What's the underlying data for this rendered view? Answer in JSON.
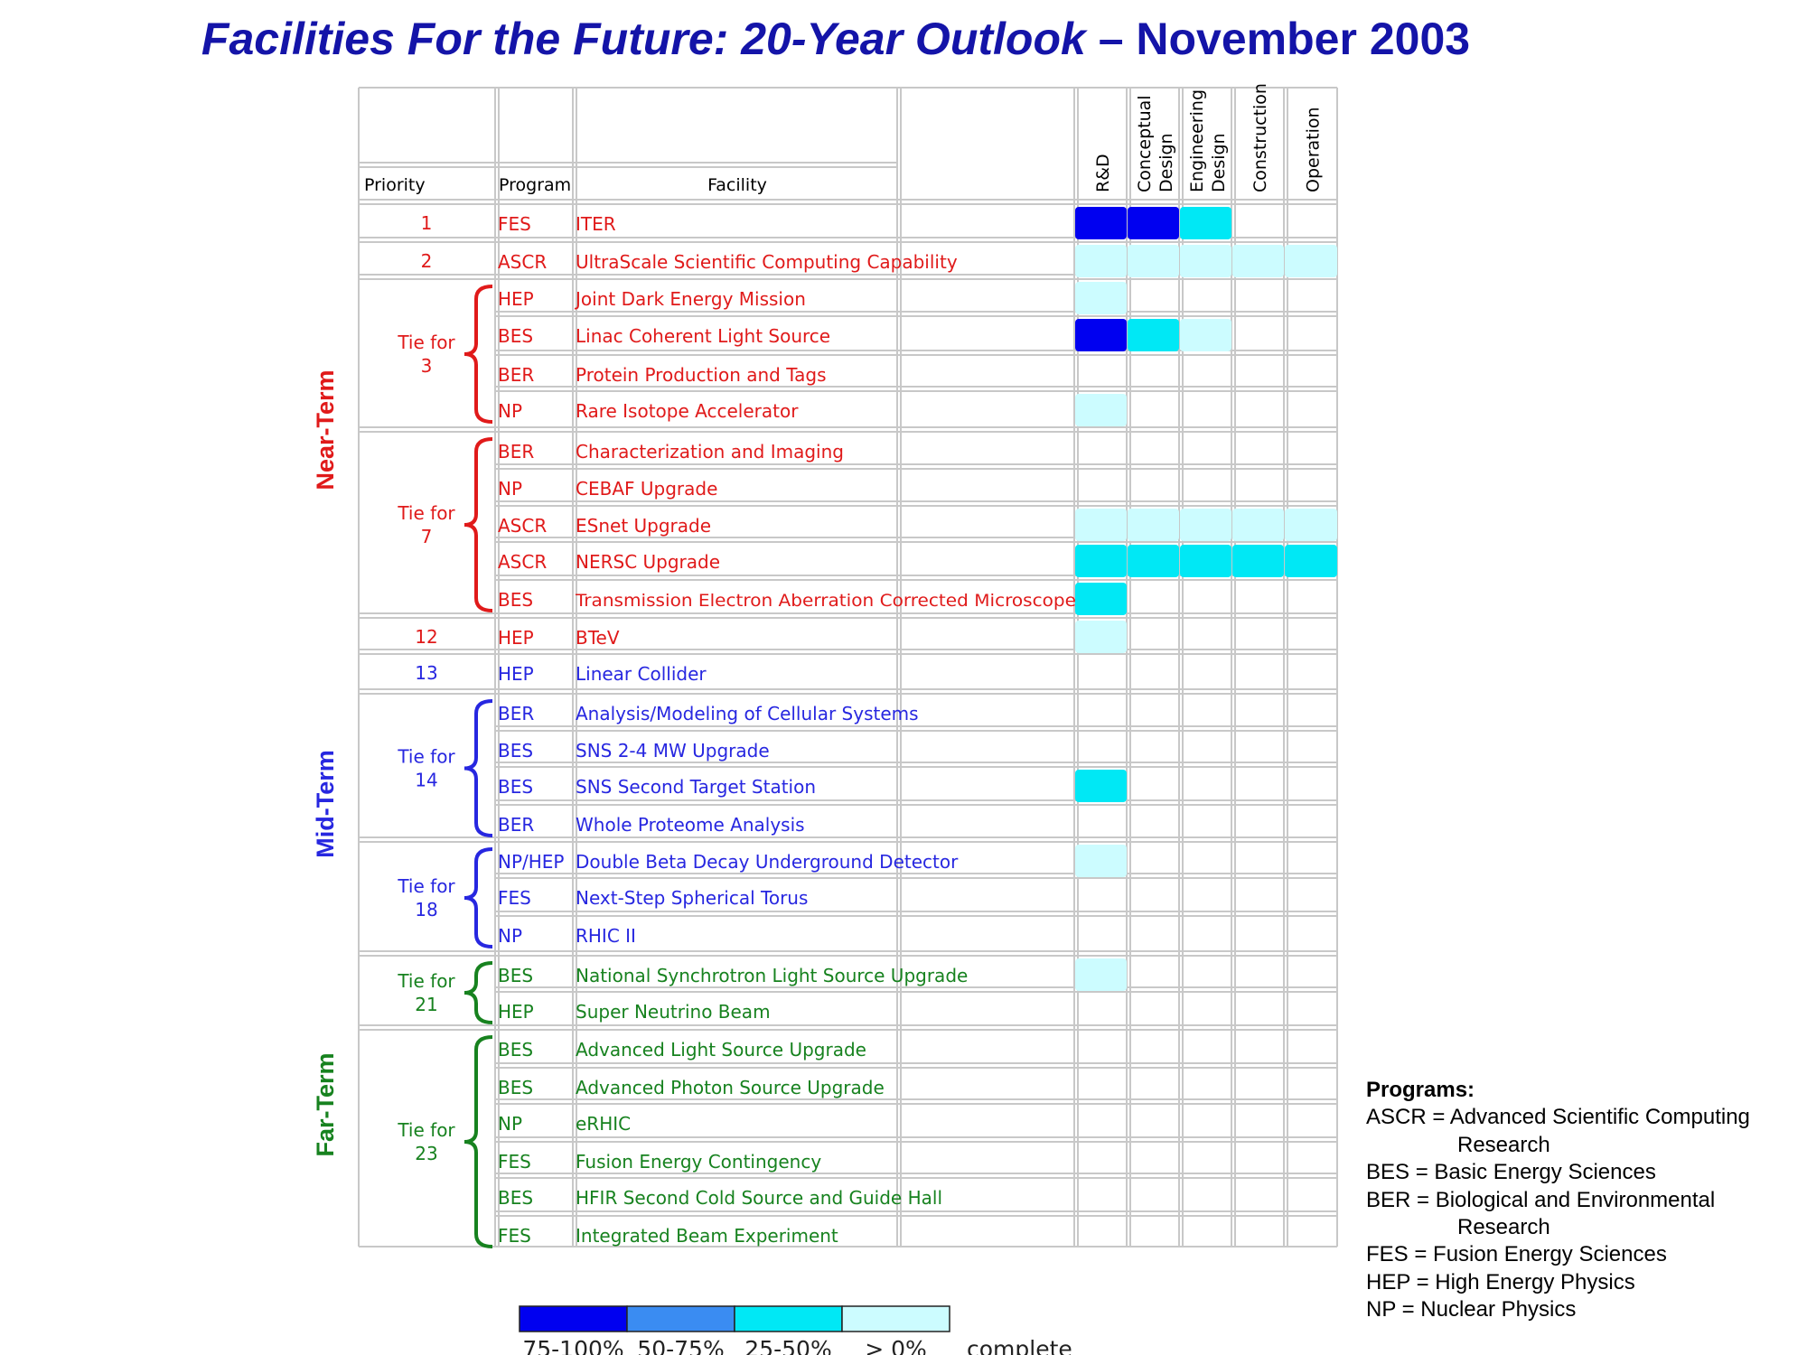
{
  "title": {
    "italic_part": "Facilities For the Future: 20-Year Outlook",
    "normal_part": " – November 2003"
  },
  "headers": {
    "priority": "Priority",
    "program": "Program",
    "facility": "Facility"
  },
  "stage_headers": [
    {
      "lines": [
        "R&D"
      ]
    },
    {
      "lines": [
        "Conceptual",
        "Design"
      ]
    },
    {
      "lines": [
        "Engineering",
        "Design"
      ]
    },
    {
      "lines": [
        "Construction"
      ]
    },
    {
      "lines": [
        "Operation"
      ]
    }
  ],
  "terms": [
    {
      "label": "Near-Term",
      "color": "#e01a1a"
    },
    {
      "label": "Mid-Term",
      "color": "#2727e0"
    },
    {
      "label": "Far-Term",
      "color": "#17821f"
    }
  ],
  "colors": {
    "red": "#e01a1a",
    "blue": "#2727e0",
    "green": "#17821f",
    "grid": "#c8c8c8"
  },
  "priority_groups": [
    {
      "lines": [
        "1"
      ],
      "color": "red",
      "brace": false
    },
    {
      "lines": [
        "2"
      ],
      "color": "red",
      "brace": false
    },
    {
      "lines": [
        "Tie for",
        "3"
      ],
      "color": "red",
      "brace": true
    },
    {
      "lines": [
        "Tie for",
        "7"
      ],
      "color": "red",
      "brace": true
    },
    {
      "lines": [
        "12"
      ],
      "color": "red",
      "brace": false
    },
    {
      "lines": [
        "13"
      ],
      "color": "blue",
      "brace": false
    },
    {
      "lines": [
        "Tie for",
        "14"
      ],
      "color": "blue",
      "brace": true
    },
    {
      "lines": [
        "Tie for",
        "18"
      ],
      "color": "blue",
      "brace": true
    },
    {
      "lines": [
        "Tie for",
        "21"
      ],
      "color": "green",
      "brace": true
    },
    {
      "lines": [
        "Tie for",
        "23"
      ],
      "color": "green",
      "brace": true
    }
  ],
  "chart_data": {
    "type": "table",
    "title": "Facilities For the Future: 20-Year Outlook – November 2003",
    "columns": [
      "Priority",
      "Program",
      "Facility",
      "R&D",
      "Conceptual Design",
      "Engineering Design",
      "Construction",
      "Operation"
    ],
    "completion_levels": [
      {
        "label": "75-100%",
        "color": "#0000f0"
      },
      {
        "label": "50-75%",
        "color": "#3a8cf2"
      },
      {
        "label": "25-50%",
        "color": "#00e8f5"
      },
      {
        "label": "> 0%",
        "color": "#ccfcff"
      }
    ],
    "legend_suffix": "complete",
    "rows": [
      {
        "program": "FES",
        "facility": "ITER",
        "stages": [
          "75-100%",
          "75-100%",
          "25-50%",
          "",
          ""
        ]
      },
      {
        "program": "ASCR",
        "facility": "UltraScale Scientific Computing Capability",
        "stages": [
          "> 0%",
          "> 0%",
          "> 0%",
          "> 0%",
          "> 0%"
        ]
      },
      {
        "program": "HEP",
        "facility": "Joint Dark Energy Mission",
        "stages": [
          "> 0%",
          "",
          "",
          "",
          ""
        ]
      },
      {
        "program": "BES",
        "facility": "Linac Coherent Light Source",
        "stages": [
          "75-100%",
          "25-50%",
          "> 0%",
          "",
          ""
        ]
      },
      {
        "program": "BER",
        "facility": "Protein Production and Tags",
        "stages": [
          "",
          "",
          "",
          "",
          ""
        ]
      },
      {
        "program": "NP",
        "facility": "Rare Isotope Accelerator",
        "stages": [
          "> 0%",
          "",
          "",
          "",
          ""
        ]
      },
      {
        "program": "BER",
        "facility": "Characterization and Imaging",
        "stages": [
          "",
          "",
          "",
          "",
          ""
        ]
      },
      {
        "program": "NP",
        "facility": "CEBAF Upgrade",
        "stages": [
          "",
          "",
          "",
          "",
          ""
        ]
      },
      {
        "program": "ASCR",
        "facility": "ESnet Upgrade",
        "stages": [
          "> 0%",
          "> 0%",
          "> 0%",
          "> 0%",
          "> 0%"
        ]
      },
      {
        "program": "ASCR",
        "facility": "NERSC Upgrade",
        "stages": [
          "25-50%",
          "25-50%",
          "25-50%",
          "25-50%",
          "25-50%"
        ]
      },
      {
        "program": "BES",
        "facility": "Transmission Electron Aberration Corrected Microscope",
        "stages": [
          "25-50%",
          "",
          "",
          "",
          ""
        ]
      },
      {
        "program": "HEP",
        "facility": "BTeV",
        "stages": [
          "> 0%",
          "",
          "",
          "",
          ""
        ]
      },
      {
        "program": "HEP",
        "facility": "Linear Collider",
        "stages": [
          "",
          "",
          "",
          "",
          ""
        ]
      },
      {
        "program": "BER",
        "facility": "Analysis/Modeling of Cellular Systems",
        "stages": [
          "",
          "",
          "",
          "",
          ""
        ]
      },
      {
        "program": "BES",
        "facility": "SNS 2-4 MW Upgrade",
        "stages": [
          "",
          "",
          "",
          "",
          ""
        ]
      },
      {
        "program": "BES",
        "facility": "SNS Second Target Station",
        "stages": [
          "25-50%",
          "",
          "",
          "",
          ""
        ]
      },
      {
        "program": "BER",
        "facility": "Whole Proteome Analysis",
        "stages": [
          "",
          "",
          "",
          "",
          ""
        ]
      },
      {
        "program": "NP/HEP",
        "facility": "Double Beta Decay Underground Detector",
        "stages": [
          "> 0%",
          "",
          "",
          "",
          ""
        ]
      },
      {
        "program": "FES",
        "facility": "Next-Step Spherical Torus",
        "stages": [
          "",
          "",
          "",
          "",
          ""
        ]
      },
      {
        "program": "NP",
        "facility": "RHIC II",
        "stages": [
          "",
          "",
          "",
          "",
          ""
        ]
      },
      {
        "program": "BES",
        "facility": "National Synchrotron Light Source Upgrade",
        "stages": [
          "> 0%",
          "",
          "",
          "",
          ""
        ]
      },
      {
        "program": "HEP",
        "facility": "Super Neutrino Beam",
        "stages": [
          "",
          "",
          "",
          "",
          ""
        ]
      },
      {
        "program": "BES",
        "facility": "Advanced Light Source Upgrade",
        "stages": [
          "",
          "",
          "",
          "",
          ""
        ]
      },
      {
        "program": "BES",
        "facility": "Advanced Photon Source Upgrade",
        "stages": [
          "",
          "",
          "",
          "",
          ""
        ]
      },
      {
        "program": "NP",
        "facility": "eRHIC",
        "stages": [
          "",
          "",
          "",
          "",
          ""
        ]
      },
      {
        "program": "FES",
        "facility": "Fusion Energy Contingency",
        "stages": [
          "",
          "",
          "",
          "",
          ""
        ]
      },
      {
        "program": "BES",
        "facility": "HFIR Second Cold Source and Guide Hall",
        "stages": [
          "",
          "",
          "",
          "",
          ""
        ]
      },
      {
        "program": "FES",
        "facility": "Integrated Beam Experiment",
        "stages": [
          "",
          "",
          "",
          "",
          ""
        ]
      }
    ]
  },
  "programs_legend": {
    "title": "Programs:",
    "lines": [
      {
        "text": "ASCR = Advanced Scientific Computing",
        "indent": false
      },
      {
        "text": "Research",
        "indent": true
      },
      {
        "text": "BES = Basic Energy Sciences",
        "indent": false
      },
      {
        "text": "BER = Biological and Environmental",
        "indent": false
      },
      {
        "text": "Research",
        "indent": true
      },
      {
        "text": "FES = Fusion Energy Sciences",
        "indent": false
      },
      {
        "text": "HEP = High Energy Physics",
        "indent": false
      },
      {
        "text": "NP = Nuclear Physics",
        "indent": false
      }
    ]
  }
}
